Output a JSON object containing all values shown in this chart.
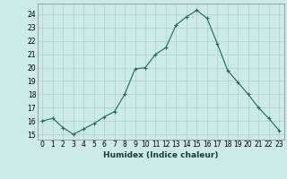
{
  "x": [
    0,
    1,
    2,
    3,
    4,
    5,
    6,
    7,
    8,
    9,
    10,
    11,
    12,
    13,
    14,
    15,
    16,
    17,
    18,
    19,
    20,
    21,
    22,
    23
  ],
  "y": [
    16.0,
    16.2,
    15.5,
    15.0,
    15.4,
    15.8,
    16.3,
    16.7,
    18.0,
    19.9,
    20.0,
    21.0,
    21.5,
    23.2,
    23.8,
    24.3,
    23.7,
    21.8,
    19.8,
    18.9,
    18.0,
    17.0,
    16.2,
    15.3
  ],
  "xlabel": "Humidex (Indice chaleur)",
  "ylim": [
    14.6,
    24.8
  ],
  "xlim": [
    -0.5,
    23.5
  ],
  "yticks": [
    15,
    16,
    17,
    18,
    19,
    20,
    21,
    22,
    23,
    24
  ],
  "xticks": [
    0,
    1,
    2,
    3,
    4,
    5,
    6,
    7,
    8,
    9,
    10,
    11,
    12,
    13,
    14,
    15,
    16,
    17,
    18,
    19,
    20,
    21,
    22,
    23
  ],
  "line_color": "#1a6b5a",
  "marker_color": "#1a6b5a",
  "bg_color": "#cceae7",
  "grid_color": "#b0d0cc",
  "xlabel_fontsize": 6.5,
  "tick_fontsize": 5.5
}
